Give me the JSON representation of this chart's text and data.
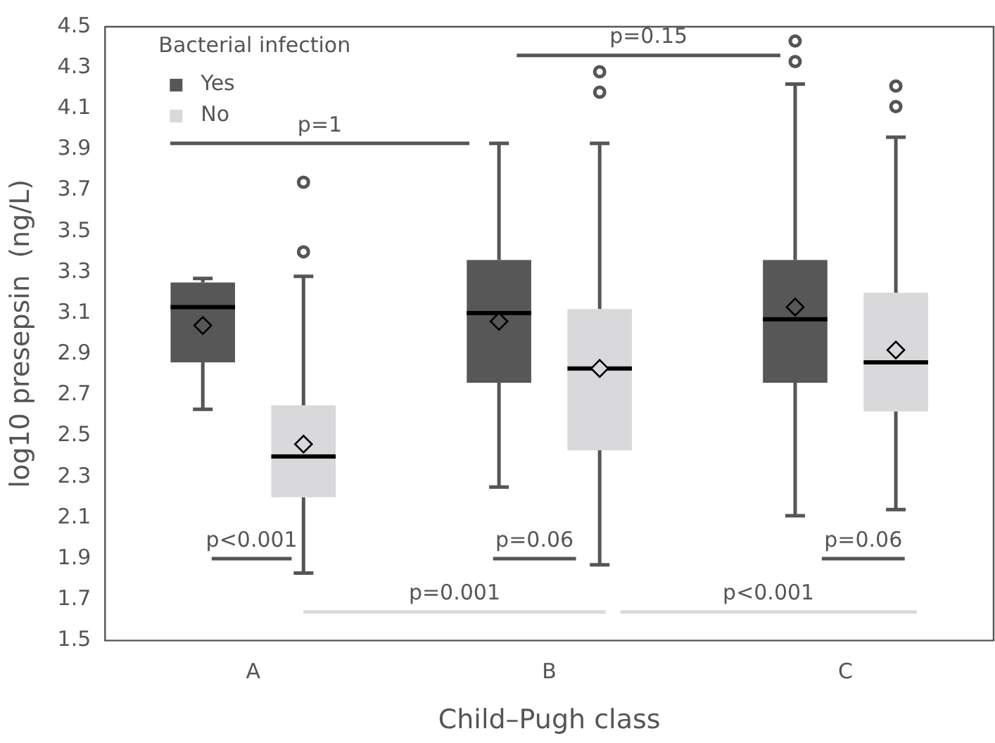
{
  "chart_data": {
    "type": "box",
    "xlabel": "Child–Pugh class",
    "ylabel": "log10 presepsin  (ng/L)",
    "legend_title": "Bacterial infection",
    "legend": "top left",
    "categories": [
      "A",
      "B",
      "C"
    ],
    "ylim": [
      1.5,
      4.5
    ],
    "yticks": [
      1.5,
      1.7,
      1.9,
      2.1,
      2.3,
      2.5,
      2.7,
      2.9,
      3.1,
      3.3,
      3.5,
      3.7,
      3.9,
      4.1,
      4.3,
      4.5
    ],
    "series": [
      {
        "name": "Yes",
        "color": "#575757",
        "boxes": [
          {
            "low": 2.63,
            "q1": 2.86,
            "median": 3.13,
            "q3": 3.25,
            "high": 3.27,
            "mean": 3.04
          },
          {
            "low": 2.25,
            "q1": 2.76,
            "median": 3.1,
            "q3": 3.36,
            "high": 3.93,
            "mean": 3.06
          },
          {
            "low": 2.11,
            "q1": 2.76,
            "median": 3.07,
            "q3": 3.36,
            "high": 4.22,
            "mean": 3.13,
            "outliers": [
              4.33,
              4.43
            ]
          }
        ]
      },
      {
        "name": "No",
        "color": "#d9d8da",
        "boxes": [
          {
            "low": 1.83,
            "q1": 2.2,
            "median": 2.4,
            "q3": 2.65,
            "high": 3.28,
            "mean": 2.46,
            "outliers": [
              3.4,
              3.74
            ]
          },
          {
            "low": 1.87,
            "q1": 2.43,
            "median": 2.83,
            "q3": 3.12,
            "high": 3.93,
            "mean": 2.83,
            "outliers": [
              4.18,
              4.28
            ]
          },
          {
            "low": 2.14,
            "q1": 2.62,
            "median": 2.86,
            "q3": 3.2,
            "high": 3.96,
            "mean": 2.92,
            "outliers": [
              4.11,
              4.21
            ]
          }
        ]
      }
    ],
    "annotations": [
      "p=1",
      "p=0.15",
      "p<0.001",
      "p=0.001",
      "p=0.06",
      "p<0.001",
      "p=0.06"
    ]
  }
}
